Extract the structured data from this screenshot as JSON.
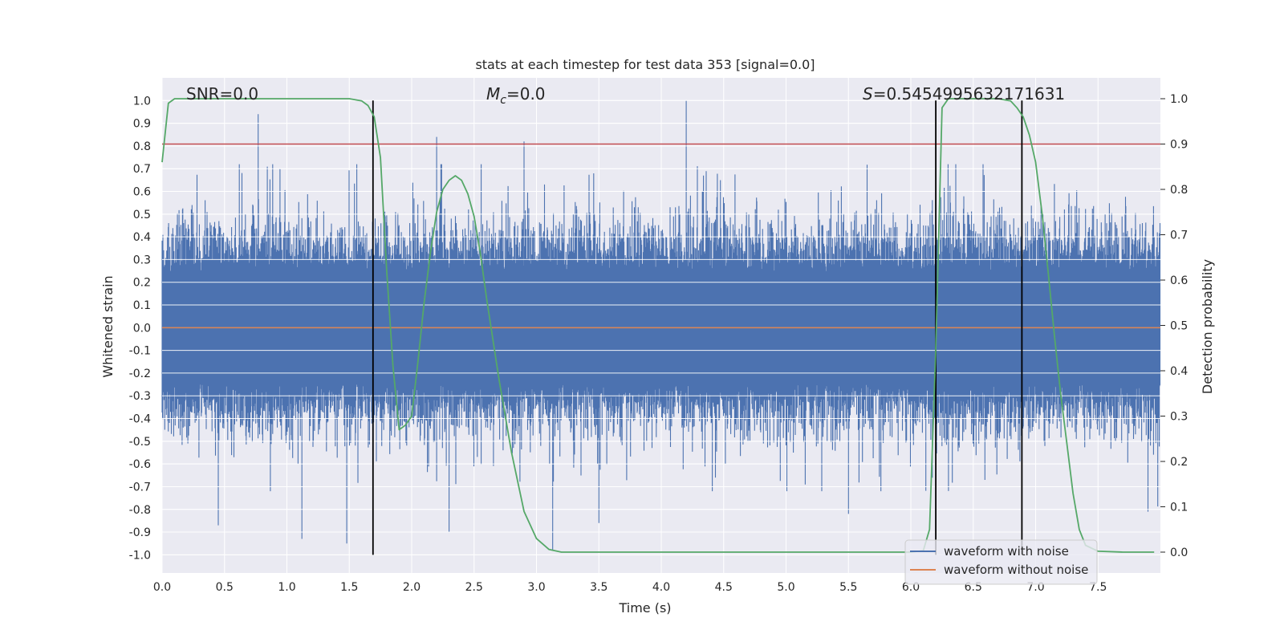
{
  "chart_data": {
    "type": "line",
    "title": "stats at each timestep for test data 353 [signal=0.0]",
    "xlabel": "Time (s)",
    "ylabel_left": "Whitened strain",
    "ylabel_right": "Detection probability",
    "xlim": [
      0.0,
      8.0
    ],
    "ylim_left": [
      -1.08,
      1.1
    ],
    "ylim_right": [
      -0.046,
      1.046
    ],
    "x_ticks": [
      "0.0",
      "0.5",
      "1.0",
      "1.5",
      "2.0",
      "2.5",
      "3.0",
      "3.5",
      "4.0",
      "4.5",
      "5.0",
      "5.5",
      "6.0",
      "6.5",
      "7.0",
      "7.5"
    ],
    "y_ticks_left": [
      "1.0",
      "0.9",
      "0.8",
      "0.7",
      "0.6",
      "0.5",
      "0.4",
      "0.3",
      "0.2",
      "0.1",
      "0.0",
      "-0.1",
      "-0.2",
      "-0.3",
      "-0.4",
      "-0.5",
      "-0.6",
      "-0.7",
      "-0.8",
      "-0.9",
      "-1.0"
    ],
    "y_ticks_right": [
      "1.0",
      "0.9",
      "0.8",
      "0.7",
      "0.6",
      "0.5",
      "0.4",
      "0.3",
      "0.2",
      "0.1",
      "0.0"
    ],
    "grid": true,
    "legend_position": "lower-right",
    "annotations": {
      "snr": "SNR=0.0",
      "mc_symbol": "M",
      "mc_sub": "c",
      "mc_value": "=0.0",
      "s_symbol": "S",
      "s_value": "=0.5454995632171631"
    },
    "threshold_line": {
      "value_right_axis": 0.9,
      "color": "#c44e52"
    },
    "vertical_lines_x": [
      1.69,
      6.2,
      6.89
    ],
    "colors": {
      "noise": "#4c72b0",
      "clean": "#dd8452",
      "probability": "#55a868",
      "vline": "#000000",
      "plot_bg": "#eaeaf2",
      "grid": "#ffffff"
    },
    "series": [
      {
        "name": "waveform with noise",
        "color": "#4c72b0",
        "description_values": {
          "typical_envelope": 0.45,
          "extreme_max": 1.0,
          "extreme_min": -0.98
        },
        "spikes": [
          {
            "x": 0.77,
            "y": 0.94
          },
          {
            "x": 2.2,
            "y": 0.84
          },
          {
            "x": 2.9,
            "y": 0.82
          },
          {
            "x": 4.2,
            "y": 1.0
          },
          {
            "x": 1.48,
            "y": -0.95
          },
          {
            "x": 1.12,
            "y": -0.93
          },
          {
            "x": 3.13,
            "y": -0.98
          },
          {
            "x": 0.45,
            "y": -0.87
          },
          {
            "x": 2.3,
            "y": -0.9
          },
          {
            "x": 3.5,
            "y": -0.86
          },
          {
            "x": 5.5,
            "y": -0.82
          },
          {
            "x": 7.9,
            "y": -0.81
          }
        ]
      },
      {
        "name": "waveform without noise",
        "color": "#dd8452",
        "x": [
          0.0,
          8.0
        ],
        "y": [
          0.0,
          0.0
        ]
      },
      {
        "name": "detection probability",
        "color": "#55a868",
        "axis": "right",
        "x": [
          0.0,
          0.05,
          0.1,
          0.3,
          0.6,
          1.0,
          1.3,
          1.5,
          1.6,
          1.65,
          1.7,
          1.75,
          1.8,
          1.85,
          1.9,
          1.95,
          2.0,
          2.05,
          2.1,
          2.15,
          2.2,
          2.25,
          2.3,
          2.35,
          2.4,
          2.45,
          2.5,
          2.55,
          2.6,
          2.7,
          2.8,
          2.9,
          3.0,
          3.1,
          3.2,
          3.5,
          4.0,
          5.0,
          6.0,
          6.1,
          6.15,
          6.2,
          6.25,
          6.3,
          6.4,
          6.5,
          6.6,
          6.7,
          6.8,
          6.85,
          6.9,
          6.95,
          7.0,
          7.05,
          7.1,
          7.15,
          7.2,
          7.25,
          7.3,
          7.35,
          7.4,
          7.5,
          7.7,
          7.95
        ],
        "y": [
          0.86,
          0.99,
          1.0,
          1.0,
          1.0,
          1.0,
          1.0,
          1.0,
          0.995,
          0.985,
          0.96,
          0.87,
          0.62,
          0.41,
          0.27,
          0.28,
          0.3,
          0.42,
          0.55,
          0.66,
          0.75,
          0.8,
          0.82,
          0.83,
          0.82,
          0.79,
          0.74,
          0.66,
          0.56,
          0.38,
          0.22,
          0.09,
          0.03,
          0.006,
          0.0,
          0.0,
          0.0,
          0.0,
          0.0,
          0.003,
          0.05,
          0.45,
          0.98,
          1.0,
          1.0,
          1.0,
          1.0,
          1.0,
          0.995,
          0.98,
          0.96,
          0.92,
          0.86,
          0.75,
          0.62,
          0.48,
          0.35,
          0.24,
          0.13,
          0.05,
          0.015,
          0.002,
          0.0,
          0.0
        ]
      }
    ]
  }
}
